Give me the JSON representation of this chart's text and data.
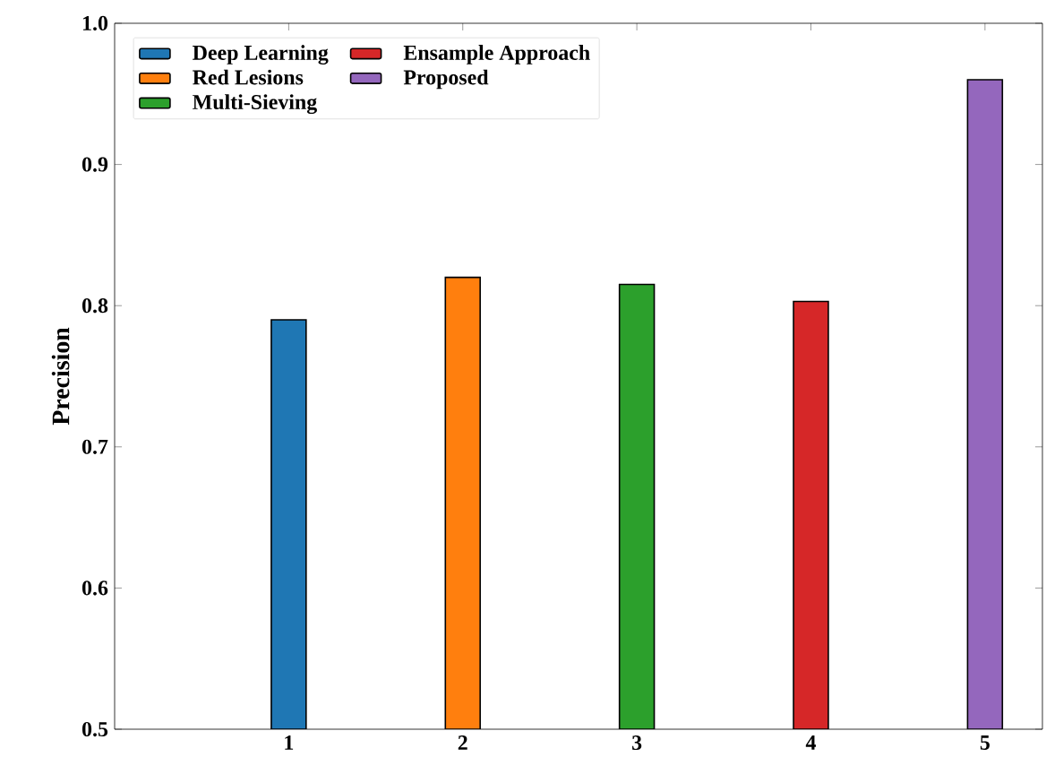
{
  "chart_data": {
    "type": "bar",
    "ylabel": "Precision",
    "xlim": [
      0,
      5.33
    ],
    "xticks": [
      1,
      2,
      3,
      4,
      5
    ],
    "ylim": [
      0.5,
      1.0
    ],
    "yticks": [
      {
        "value": 0.5,
        "label": "0.5"
      },
      {
        "value": 0.6,
        "label": "0.6"
      },
      {
        "value": 0.7,
        "label": "0.7"
      },
      {
        "value": 0.8,
        "label": "0.8"
      },
      {
        "value": 0.9,
        "label": "0.9"
      },
      {
        "value": 1.0,
        "label": "1.0"
      }
    ],
    "legend": "top left",
    "grid": false,
    "series": [
      {
        "name": "Deep Learning",
        "color": "#1f77b4",
        "x": [
          1
        ],
        "values": [
          0.79
        ]
      },
      {
        "name": "Red Lesions",
        "color": "#ff7f0e",
        "x": [
          2
        ],
        "values": [
          0.82
        ]
      },
      {
        "name": "Multi-Sieving",
        "color": "#2ca02c",
        "x": [
          3
        ],
        "values": [
          0.815
        ]
      },
      {
        "name": "Ensample Approach",
        "color": "#d62728",
        "x": [
          4
        ],
        "values": [
          0.803
        ]
      },
      {
        "name": "Proposed",
        "color": "#9467bd",
        "x": [
          5
        ],
        "values": [
          0.96
        ]
      }
    ]
  }
}
